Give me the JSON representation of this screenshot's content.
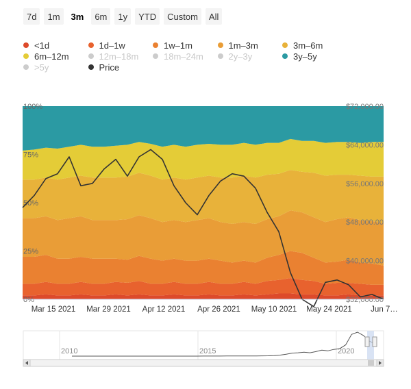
{
  "range_selector": {
    "buttons": [
      "7d",
      "1m",
      "3m",
      "6m",
      "1y",
      "YTD",
      "Custom",
      "All"
    ],
    "selected": "3m"
  },
  "legend": [
    {
      "label": "<1d",
      "color": "#dd4a2b",
      "visible": true
    },
    {
      "label": "1d–1w",
      "color": "#e8622e",
      "visible": true
    },
    {
      "label": "1w–1m",
      "color": "#ea8131",
      "visible": true
    },
    {
      "label": "1m–3m",
      "color": "#e99d37",
      "visible": true
    },
    {
      "label": "3m–6m",
      "color": "#e8b23a",
      "visible": true
    },
    {
      "label": "6m–12m",
      "color": "#e4cc37",
      "visible": true
    },
    {
      "label": "12m–18m",
      "color": "#cccccc",
      "visible": false
    },
    {
      "label": "18m–24m",
      "color": "#cccccc",
      "visible": false
    },
    {
      "label": "2y–3y",
      "color": "#cccccc",
      "visible": false
    },
    {
      "label": "3y–5y",
      "color": "#2b9aa3",
      "visible": true
    },
    {
      "label": ">5y",
      "color": "#cccccc",
      "visible": false
    },
    {
      "label": "Price",
      "color": "#333333",
      "visible": true
    }
  ],
  "chart_data": {
    "type": "area",
    "stacking": "percent",
    "x": [
      "Mar 8 2021",
      "Mar 10 2021",
      "Mar 13 2021",
      "Mar 16 2021",
      "Mar 20 2021",
      "Mar 24 2021",
      "Mar 28 2021",
      "Apr 1 2021",
      "Apr 4 2021",
      "Apr 7 2021",
      "Apr 10 2021",
      "Apr 13 2021",
      "Apr 15 2021",
      "Apr 18 2021",
      "Apr 21 2021",
      "Apr 24 2021",
      "Apr 27 2021",
      "Apr 30 2021",
      "May 3 2021",
      "May 6 2021",
      "May 9 2021",
      "May 12 2021",
      "May 14 2021",
      "May 17 2021",
      "May 19 2021",
      "May 22 2021",
      "May 25 2021",
      "May 28 2021",
      "May 31 2021",
      "Jun 3 2021",
      "Jun 6 2021",
      "Jun 9 2021"
    ],
    "x_ticks": [
      "Mar 15 2021",
      "Mar 29 2021",
      "Apr 12 2021",
      "Apr 26 2021",
      "May 10 2021",
      "May 24 2021",
      "Jun 7…"
    ],
    "y_left_ticks": [
      "0%",
      "25%",
      "50%",
      "75%",
      "100%"
    ],
    "y_left_range": [
      0,
      100
    ],
    "y_right_ticks": [
      "$32,000.00",
      "$40,000.00",
      "$48,000.00",
      "$56,000.00",
      "$64,000.00",
      "$72,000.00"
    ],
    "y_right_range": [
      32000,
      72000
    ],
    "series": [
      {
        "name": "<1d",
        "color": "#dd4a2b",
        "values": [
          2,
          2,
          2.5,
          2,
          2,
          2.5,
          2,
          2,
          2.5,
          2,
          2.5,
          2,
          2,
          2.5,
          2,
          2,
          2.5,
          2,
          2,
          2.5,
          2,
          2.5,
          3,
          3,
          2.5,
          2.5,
          2,
          2,
          2.5,
          2,
          2,
          2
        ]
      },
      {
        "name": "1d–1w",
        "color": "#e8622e",
        "values": [
          6,
          6,
          6.5,
          6,
          6,
          6.5,
          6,
          6,
          6.5,
          6.5,
          7,
          6,
          6,
          6.5,
          6,
          6,
          6.5,
          6,
          6,
          6.5,
          6,
          7,
          7,
          8,
          7.5,
          7,
          6,
          6.5,
          6,
          6,
          5.5,
          5.5
        ]
      },
      {
        "name": "1w–1m",
        "color": "#ea8131",
        "values": [
          14,
          14,
          14,
          13,
          13,
          13,
          13,
          13,
          12,
          12,
          13,
          13,
          12,
          12,
          12,
          12,
          12,
          12,
          11,
          11,
          11,
          12,
          13,
          14,
          14,
          12,
          11,
          11,
          12,
          11,
          11,
          10
        ]
      },
      {
        "name": "1m–3m",
        "color": "#e99d37",
        "values": [
          20,
          20,
          20,
          20,
          21,
          21,
          20,
          20,
          20,
          21,
          21,
          21,
          20,
          20,
          20,
          21,
          21,
          20,
          20,
          20,
          20,
          20,
          20,
          21,
          21,
          21,
          21,
          22,
          22,
          22,
          22,
          22
        ]
      },
      {
        "name": "3m–6m",
        "color": "#e8b23a",
        "values": [
          20,
          20,
          20,
          21,
          21,
          21,
          22,
          22,
          22,
          22,
          22,
          22,
          22,
          22,
          22,
          22,
          22,
          23,
          24,
          24,
          24,
          23,
          22,
          21,
          21,
          23,
          24,
          23,
          22,
          23,
          23,
          24
        ]
      },
      {
        "name": "6m–12m",
        "color": "#e4cc37",
        "values": [
          15,
          15.5,
          15.5,
          16,
          16,
          16,
          16,
          16,
          16.5,
          16.5,
          16,
          16.5,
          17,
          17,
          17,
          17,
          16.5,
          17,
          17,
          17,
          17,
          16.5,
          16,
          16,
          16,
          16.5,
          17,
          17,
          17,
          17,
          18,
          18
        ]
      },
      {
        "name": "3y–5y",
        "color": "#2b9aa3",
        "values": [
          23,
          22.5,
          21.5,
          22,
          21,
          20,
          21,
          21,
          20.5,
          20,
          18.5,
          19.5,
          21,
          20,
          21,
          20,
          19.5,
          20,
          20,
          19,
          20,
          19,
          19,
          17,
          18,
          18,
          19,
          18.5,
          18.5,
          19,
          18.5,
          18.5
        ]
      },
      {
        "name": "Price",
        "color": "#333333",
        "axis": "right",
        "values": [
          51000,
          53500,
          57000,
          58000,
          61500,
          55500,
          56000,
          59000,
          61000,
          57500,
          61500,
          63000,
          61000,
          55500,
          52000,
          49500,
          53500,
          56500,
          58000,
          57500,
          55000,
          50000,
          46000,
          37500,
          32000,
          30500,
          35500,
          36000,
          35000,
          32500,
          33000,
          32000
        ]
      }
    ]
  },
  "navigator": {
    "x_ticks": [
      "2010",
      "2015",
      "2020"
    ],
    "price_history": [
      0,
      0,
      0,
      0,
      0,
      0,
      0,
      0,
      0,
      0,
      5,
      3,
      8,
      6,
      10,
      15,
      35,
      40,
      18,
      22,
      30,
      90,
      100,
      200,
      180,
      250,
      400,
      560,
      600,
      500,
      580,
      620,
      700,
      900,
      1500,
      2700,
      5000,
      8000,
      9000,
      10500,
      9000,
      12000,
      16000,
      14000,
      18000,
      20000,
      30000,
      58000,
      64000,
      55000,
      40000,
      32000
    ]
  }
}
